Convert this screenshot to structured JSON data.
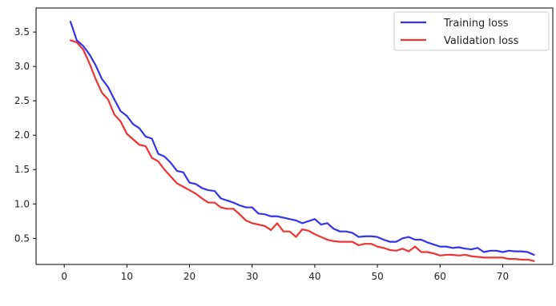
{
  "chart_data": {
    "type": "line",
    "title": "",
    "xlabel": "",
    "ylabel": "",
    "xlim": [
      -4.5,
      78
    ],
    "ylim": [
      0.12,
      3.85
    ],
    "grid": false,
    "legend_position": "top-right",
    "xticks": [
      0,
      10,
      20,
      30,
      40,
      50,
      60,
      70
    ],
    "xtick_labels": [
      "0",
      "10",
      "20",
      "30",
      "40",
      "50",
      "60",
      "70"
    ],
    "yticks": [
      0.5,
      1.0,
      1.5,
      2.0,
      2.5,
      3.0,
      3.5
    ],
    "ytick_labels": [
      "0.5",
      "1.0",
      "1.5",
      "2.0",
      "2.5",
      "3.0",
      "3.5"
    ],
    "x": [
      1,
      2,
      3,
      4,
      5,
      6,
      7,
      8,
      9,
      10,
      11,
      12,
      13,
      14,
      15,
      16,
      17,
      18,
      19,
      20,
      21,
      22,
      23,
      24,
      25,
      26,
      27,
      28,
      29,
      30,
      31,
      32,
      33,
      34,
      35,
      36,
      37,
      38,
      39,
      40,
      41,
      42,
      43,
      44,
      45,
      46,
      47,
      48,
      49,
      50,
      51,
      52,
      53,
      54,
      55,
      56,
      57,
      58,
      59,
      60,
      61,
      62,
      63,
      64,
      65,
      66,
      67,
      68,
      69,
      70,
      71,
      72,
      73,
      74,
      75
    ],
    "series": [
      {
        "name": "Training loss",
        "color": "#3333ee",
        "values": [
          3.65,
          3.38,
          3.3,
          3.18,
          3.02,
          2.82,
          2.7,
          2.52,
          2.35,
          2.28,
          2.16,
          2.1,
          1.98,
          1.95,
          1.73,
          1.69,
          1.6,
          1.48,
          1.46,
          1.31,
          1.29,
          1.23,
          1.2,
          1.19,
          1.08,
          1.05,
          1.02,
          0.98,
          0.95,
          0.95,
          0.86,
          0.85,
          0.82,
          0.82,
          0.8,
          0.78,
          0.76,
          0.72,
          0.75,
          0.78,
          0.7,
          0.72,
          0.64,
          0.6,
          0.6,
          0.58,
          0.52,
          0.53,
          0.53,
          0.52,
          0.48,
          0.45,
          0.45,
          0.5,
          0.52,
          0.48,
          0.48,
          0.44,
          0.41,
          0.38,
          0.38,
          0.36,
          0.37,
          0.35,
          0.34,
          0.36,
          0.3,
          0.32,
          0.32,
          0.3,
          0.32,
          0.31,
          0.31,
          0.3,
          0.26
        ]
      },
      {
        "name": "Validation loss",
        "color": "#ee3333",
        "values": [
          3.38,
          3.35,
          3.25,
          3.05,
          2.82,
          2.62,
          2.52,
          2.3,
          2.2,
          2.02,
          1.94,
          1.86,
          1.84,
          1.67,
          1.62,
          1.5,
          1.4,
          1.3,
          1.25,
          1.2,
          1.15,
          1.08,
          1.02,
          1.02,
          0.95,
          0.93,
          0.93,
          0.85,
          0.76,
          0.72,
          0.7,
          0.68,
          0.62,
          0.72,
          0.6,
          0.6,
          0.52,
          0.63,
          0.61,
          0.56,
          0.52,
          0.48,
          0.46,
          0.45,
          0.45,
          0.45,
          0.4,
          0.42,
          0.42,
          0.38,
          0.36,
          0.33,
          0.32,
          0.35,
          0.31,
          0.38,
          0.3,
          0.3,
          0.28,
          0.25,
          0.26,
          0.26,
          0.25,
          0.26,
          0.24,
          0.23,
          0.22,
          0.22,
          0.22,
          0.22,
          0.2,
          0.2,
          0.19,
          0.19,
          0.17
        ]
      }
    ]
  }
}
